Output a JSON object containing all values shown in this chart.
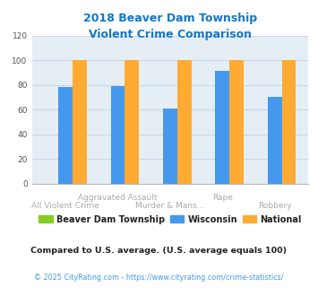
{
  "title": "2018 Beaver Dam Township\nViolent Crime Comparison",
  "beaver_dam": [
    0,
    0,
    0,
    0,
    0
  ],
  "wisconsin": [
    78,
    79,
    61,
    91,
    70
  ],
  "national": [
    100,
    100,
    100,
    100,
    100
  ],
  "beaver_dam_color": "#88cc22",
  "wisconsin_color": "#4499ee",
  "national_color": "#ffaa33",
  "ylim": [
    0,
    120
  ],
  "yticks": [
    0,
    20,
    40,
    60,
    80,
    100,
    120
  ],
  "title_color": "#1177cc",
  "bg_color": "#e5eef4",
  "grid_color": "#c8d8e8",
  "legend_labels": [
    "Beaver Dam Township",
    "Wisconsin",
    "National"
  ],
  "footnote1": "Compared to U.S. average. (U.S. average equals 100)",
  "footnote2": "© 2025 CityRating.com - https://www.cityrating.com/crime-statistics/",
  "footnote1_color": "#222222",
  "footnote2_color": "#4499ee",
  "xtick_top": [
    "",
    "Aggravated Assault",
    "",
    "Rape",
    ""
  ],
  "xtick_bottom": [
    "All Violent Crime",
    "",
    "Murder & Mans...",
    "",
    "Robbery"
  ],
  "xtick_color": "#aaaaaa",
  "bar_width": 0.27,
  "n_groups": 5
}
